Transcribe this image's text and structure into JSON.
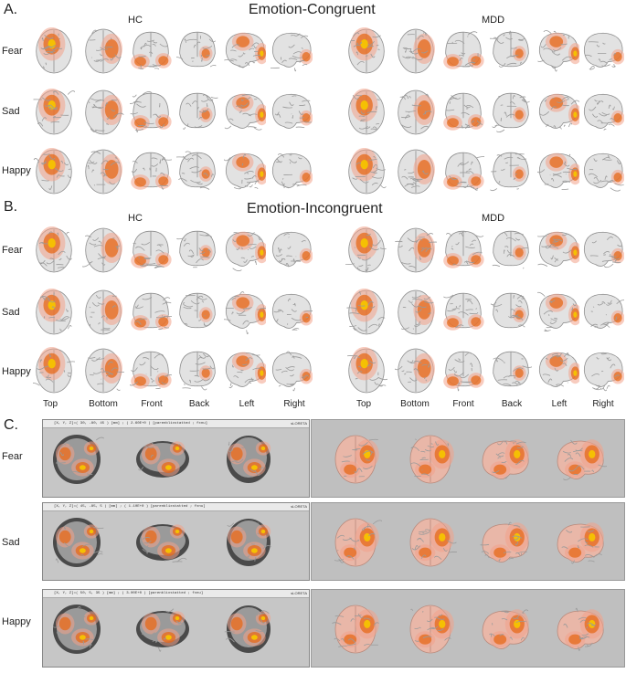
{
  "panels": {
    "a": {
      "letter": "A.",
      "title": "Emotion-Congruent"
    },
    "b": {
      "letter": "B.",
      "title": "Emotion-Incongruent"
    },
    "c": {
      "letter": "C."
    }
  },
  "groups": {
    "hc": "HC",
    "mdd": "MDD"
  },
  "emotions": [
    "Fear",
    "Sad",
    "Happy"
  ],
  "views": [
    "Top",
    "Bottom",
    "Front",
    "Back",
    "Left",
    "Right"
  ],
  "panel_c": {
    "rows": [
      {
        "label": "Fear",
        "header": "[X, Y, Z]=( 30, -80, 45 ) [mm] ; ( 2.60E+0 ) [parenblixstatted ; fxnu]"
      },
      {
        "label": "Sad",
        "header": "[X, Y, Z]=( 45, -85, 5 ) [mm] ; ( 1.10E+0 ) [parenblixstatted ; fxnu]"
      },
      {
        "label": "Happy",
        "header": "[X, Y, Z]=( 50, 5, 35 ) [mm] ; ( 3.00E+0 ) [parenblixstatted ; fxnu]"
      }
    ],
    "software": "sLORETA"
  },
  "colors": {
    "activation_hot": "#f5c400",
    "activation_mid": "#e66a1a",
    "activation_low": "#f2a38a",
    "cortex": "#e2e2e2",
    "background_gray": "#bdbdbd"
  }
}
